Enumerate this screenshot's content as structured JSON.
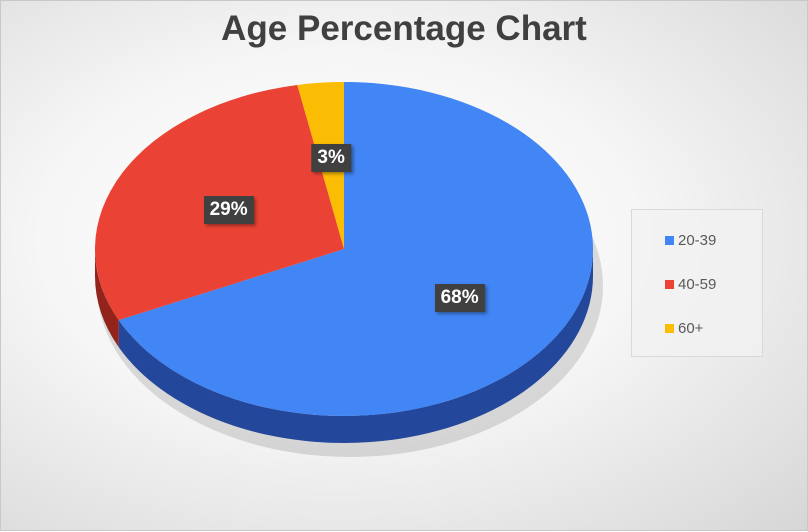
{
  "chart_data": {
    "type": "pie",
    "title": "Age Percentage Chart",
    "categories": [
      "20-39",
      "40-59",
      "60+"
    ],
    "values": [
      68,
      29,
      3
    ],
    "labels": [
      "68%",
      "29%",
      "3%"
    ],
    "colors": [
      "#4285f4",
      "#ea4335",
      "#fbbc04"
    ],
    "side_colors": [
      "#23479a",
      "#92241c",
      "#a37800"
    ],
    "legend_position": "right"
  }
}
